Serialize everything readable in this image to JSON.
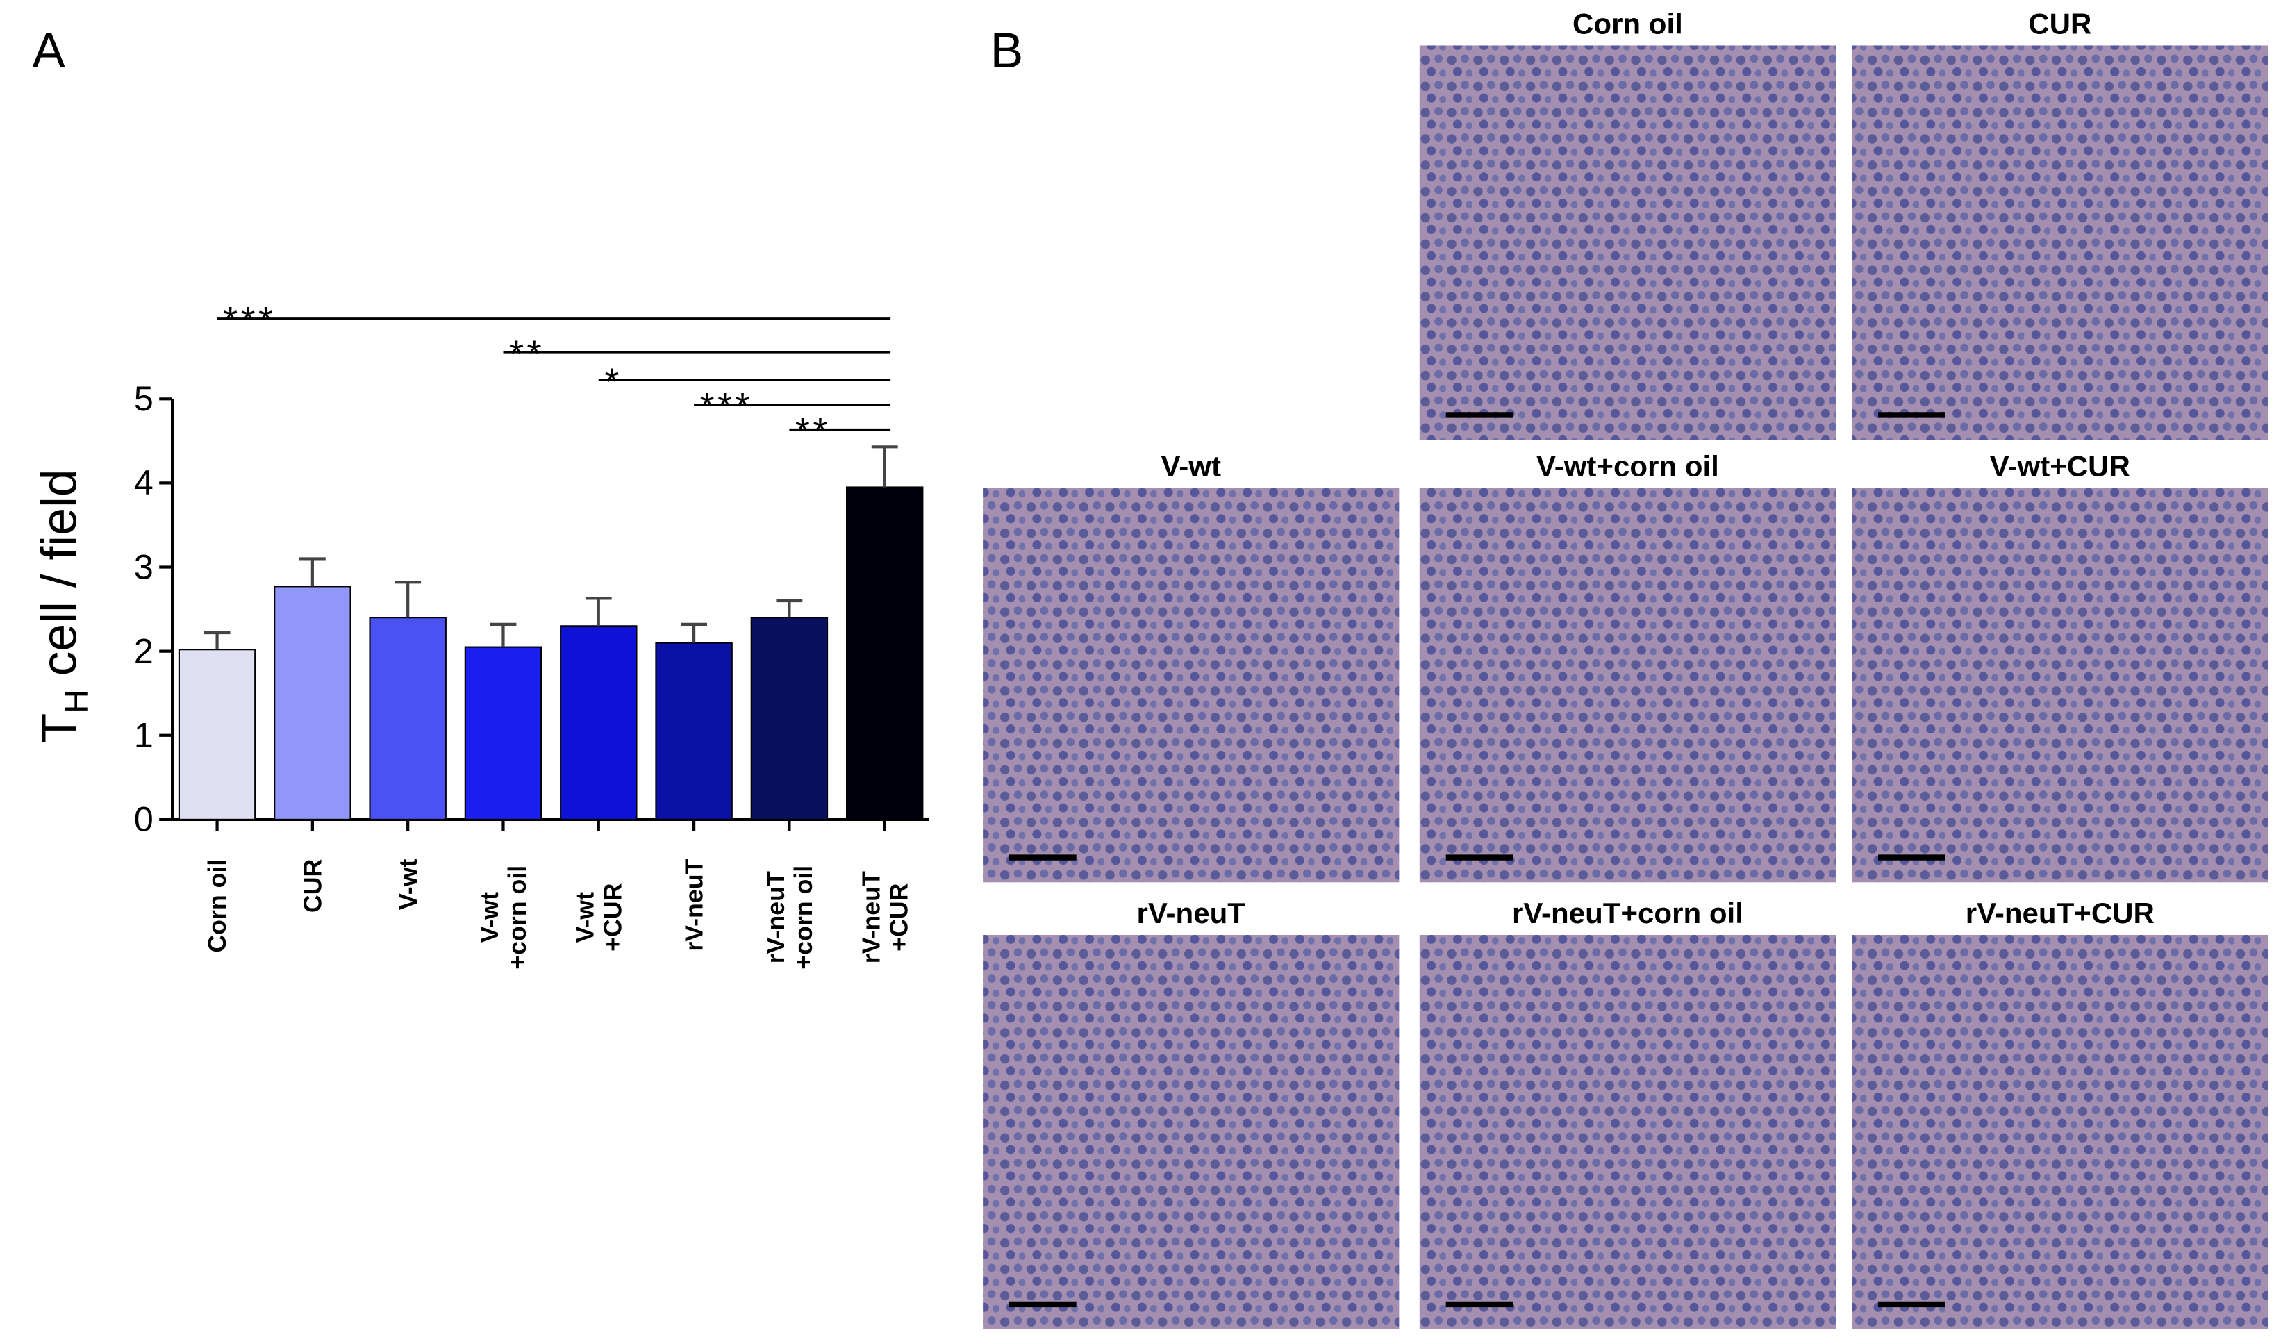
{
  "panel_a": {
    "label": "A"
  },
  "panel_b": {
    "label": "B",
    "panels": [
      "Corn oil",
      "CUR",
      "V-wt",
      "V-wt+corn oil",
      "V-wt+CUR",
      "rV-neuT",
      "rV-neuT+corn oil",
      "rV-neuT+CUR"
    ]
  },
  "chart_data": {
    "type": "bar",
    "ylabel": [
      "T",
      "H",
      " cell / field"
    ],
    "categories": [
      [
        "Corn oil"
      ],
      [
        "CUR"
      ],
      [
        "V-wt"
      ],
      [
        "V-wt",
        "+corn oil"
      ],
      [
        "V-wt",
        "+CUR"
      ],
      [
        "rV-neuT"
      ],
      [
        "rV-neuT",
        "+corn oil"
      ],
      [
        "rV-neuT",
        "+CUR"
      ]
    ],
    "values": [
      2.02,
      2.77,
      2.4,
      2.05,
      2.3,
      2.1,
      2.4,
      3.95
    ],
    "errors": [
      0.2,
      0.33,
      0.42,
      0.27,
      0.33,
      0.22,
      0.2,
      0.48
    ],
    "colors": [
      "#dfe0f2",
      "#9097f8",
      "#4b52f5",
      "#1c20ee",
      "#0e12d6",
      "#0b10a6",
      "#0a1060",
      "#00000e"
    ],
    "ylim": [
      0,
      5
    ],
    "yticks": [
      0,
      1,
      2,
      3,
      4,
      5
    ],
    "significance": [
      {
        "label": "***",
        "from": 0,
        "to": 7
      },
      {
        "label": "**",
        "from": 3,
        "to": 7
      },
      {
        "label": "*",
        "from": 4,
        "to": 7
      },
      {
        "label": "***",
        "from": 5,
        "to": 7
      },
      {
        "label": "**",
        "from": 6,
        "to": 7
      }
    ]
  }
}
